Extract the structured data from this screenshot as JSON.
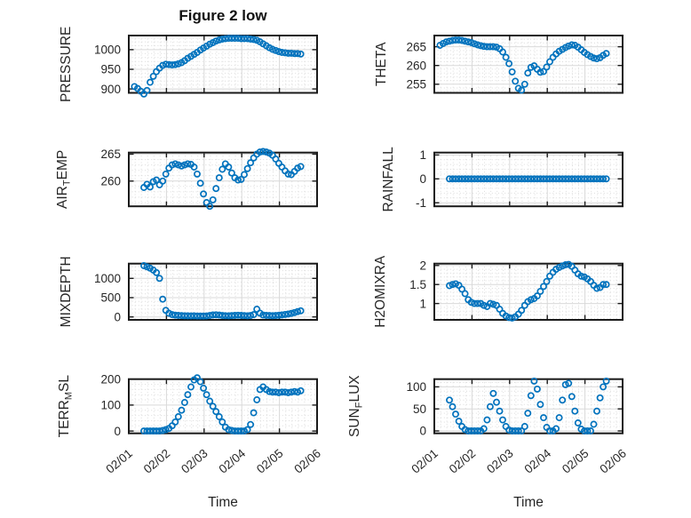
{
  "figure": {
    "title": "Figure 2 low"
  },
  "chart_data": {
    "type": "scatter",
    "title": "Figure 2 low",
    "xlabel": "Time",
    "xlim_days": [
      0,
      5
    ],
    "xtick_labels": [
      "02/01",
      "02/02",
      "02/03",
      "02/04",
      "02/05",
      "02/06"
    ],
    "x_minor_per_day": 6,
    "grid": {
      "major": true,
      "minor": true
    },
    "marker": {
      "shape": "circle-open",
      "color": "#0072BD"
    },
    "axis_color": "#1a1a1a",
    "major_grid_color": "#d9d9d9",
    "minor_grid_color": "#dcdcdc",
    "text_color": "#262626",
    "x_days": [
      0.15,
      0.233,
      0.317,
      0.4,
      0.483,
      0.567,
      0.65,
      0.733,
      0.817,
      0.9,
      0.983,
      1.067,
      1.15,
      1.233,
      1.317,
      1.4,
      1.483,
      1.567,
      1.65,
      1.733,
      1.817,
      1.9,
      1.983,
      2.067,
      2.15,
      2.233,
      2.317,
      2.4,
      2.483,
      2.567,
      2.65,
      2.733,
      2.817,
      2.9,
      2.983,
      3.067,
      3.15,
      3.233,
      3.317,
      3.4,
      3.483,
      3.567,
      3.65,
      3.733,
      3.817,
      3.9,
      3.983,
      4.067,
      4.15,
      4.233,
      4.317,
      4.4,
      4.483,
      4.567
    ],
    "subplots": [
      {
        "name": "PRESSURE",
        "ylabel": [
          {
            "text": "PRESSURE"
          }
        ],
        "yticks": [
          900,
          950,
          1000
        ],
        "ylim": [
          890,
          1036
        ],
        "y_minor_step": 10,
        "values": [
          906,
          901,
          894,
          887,
          896,
          917,
          932,
          944,
          953,
          960,
          963,
          962,
          961,
          962,
          964,
          967,
          972,
          978,
          983,
          988,
          993,
          999,
          1004,
          1009,
          1014,
          1018,
          1022,
          1025,
          1027,
          1028,
          1029,
          1029,
          1029,
          1029,
          1028,
          1028,
          1028,
          1027,
          1026,
          1024,
          1020,
          1015,
          1010,
          1005,
          1001,
          998,
          995,
          993,
          992,
          991,
          991,
          990,
          990,
          989
        ]
      },
      {
        "name": "THETA",
        "ylabel": [
          {
            "text": "THETA"
          }
        ],
        "yticks": [
          255,
          260,
          265
        ],
        "ylim": [
          252.7,
          268
        ],
        "y_minor_step": 1,
        "values": [
          265.4,
          265.9,
          266.3,
          266.5,
          266.7,
          266.8,
          266.8,
          266.7,
          266.5,
          266.3,
          266.1,
          265.8,
          265.5,
          265.3,
          265.1,
          265.0,
          265.0,
          265.0,
          264.9,
          264.5,
          263.6,
          262.2,
          260.5,
          258.3,
          255.8,
          253.9,
          253.4,
          255.0,
          258.0,
          259.5,
          259.9,
          259.0,
          258.2,
          258.4,
          259.6,
          261.0,
          262.2,
          263.1,
          263.8,
          264.3,
          264.8,
          265.2,
          265.5,
          265.4,
          264.9,
          264.2,
          263.5,
          262.9,
          262.4,
          262.0,
          261.8,
          262.1,
          262.7,
          263.2
        ]
      },
      {
        "name": "AIR_TEMP",
        "ylabel": [
          {
            "text": "AIR"
          },
          {
            "text": "T",
            "sub": true
          },
          {
            "text": "EMP"
          }
        ],
        "yticks": [
          260,
          265
        ],
        "ylim": [
          255.3,
          265.3
        ],
        "y_minor_step": 1,
        "values": [
          null,
          null,
          null,
          258.8,
          259.4,
          258.9,
          259.9,
          260.2,
          259.3,
          260.0,
          261.3,
          262.4,
          263.0,
          263.2,
          263.0,
          262.8,
          263.0,
          263.2,
          263.1,
          262.6,
          261.3,
          259.6,
          257.6,
          256.0,
          255.3,
          256.5,
          258.6,
          260.6,
          262.2,
          263.2,
          262.6,
          261.5,
          260.6,
          260.2,
          260.3,
          261.2,
          262.3,
          263.4,
          264.3,
          265.0,
          265.4,
          265.5,
          265.4,
          265.2,
          264.8,
          264.1,
          263.3,
          262.6,
          261.9,
          261.3,
          261.2,
          261.8,
          262.4,
          262.7
        ]
      },
      {
        "name": "RAINFALL",
        "ylabel": [
          {
            "text": "RAINFALL"
          }
        ],
        "yticks": [
          -1,
          0,
          1
        ],
        "ylim": [
          -1.15,
          1.1
        ],
        "y_minor_step": 0.2,
        "values": [
          null,
          null,
          null,
          0,
          0,
          0,
          0,
          0,
          0,
          0,
          0,
          0,
          0,
          0,
          0,
          0,
          0,
          0,
          0,
          0,
          0,
          0,
          0,
          0,
          0,
          0,
          0,
          0,
          0,
          0,
          0,
          0,
          0,
          0,
          0,
          0,
          0,
          0,
          0,
          0,
          0,
          0,
          0,
          0,
          0,
          0,
          0,
          0,
          0,
          0,
          0,
          0,
          0,
          0
        ]
      },
      {
        "name": "MIXDEPTH",
        "ylabel": [
          {
            "text": "MIXDEPTH"
          }
        ],
        "yticks": [
          0,
          500,
          1000
        ],
        "ylim": [
          -76,
          1382
        ],
        "y_minor_step": 100,
        "values": [
          null,
          null,
          null,
          1330,
          1300,
          1265,
          1215,
          1150,
          1000,
          460,
          170,
          95,
          60,
          45,
          40,
          35,
          30,
          28,
          26,
          28,
          24,
          22,
          22,
          26,
          38,
          50,
          55,
          48,
          38,
          32,
          30,
          34,
          40,
          44,
          40,
          34,
          30,
          36,
          60,
          200,
          100,
          48,
          40,
          36,
          32,
          36,
          44,
          54,
          64,
          76,
          92,
          112,
          138,
          160
        ]
      },
      {
        "name": "H2OMIXRA",
        "ylabel": [
          {
            "text": "H2OMIXRA"
          }
        ],
        "yticks": [
          1,
          1.5,
          2
        ],
        "ylim": [
          0.57,
          2.05
        ],
        "y_minor_step": 0.1,
        "values": [
          null,
          null,
          null,
          1.47,
          1.5,
          1.52,
          1.48,
          1.38,
          1.26,
          1.1,
          1.03,
          1.0,
          1.0,
          1.0,
          0.95,
          0.92,
          1.0,
          0.98,
          0.95,
          0.85,
          0.74,
          0.67,
          0.63,
          0.62,
          0.65,
          0.72,
          0.82,
          0.95,
          1.05,
          1.1,
          1.13,
          1.2,
          1.32,
          1.45,
          1.58,
          1.72,
          1.82,
          1.9,
          1.95,
          1.99,
          2.02,
          2.03,
          1.98,
          1.88,
          1.78,
          1.72,
          1.7,
          1.65,
          1.58,
          1.48,
          1.4,
          1.42,
          1.5,
          1.5
        ]
      },
      {
        "name": "TERR_MSL",
        "ylabel": [
          {
            "text": "TERR"
          },
          {
            "text": "M",
            "sub": true
          },
          {
            "text": "SL"
          }
        ],
        "yticks": [
          0,
          100,
          200
        ],
        "ylim": [
          -9,
          200
        ],
        "y_minor_step": 20,
        "values": [
          null,
          null,
          null,
          0,
          0,
          0,
          0,
          0,
          0,
          2,
          5,
          10,
          20,
          35,
          55,
          80,
          110,
          140,
          170,
          197,
          205,
          190,
          165,
          140,
          115,
          95,
          75,
          55,
          35,
          15,
          5,
          2,
          0,
          0,
          0,
          0,
          5,
          25,
          70,
          120,
          160,
          170,
          160,
          152,
          150,
          150,
          148,
          150,
          150,
          148,
          150,
          152,
          150,
          155
        ]
      },
      {
        "name": "SUN_FLUX",
        "ylabel": [
          {
            "text": "SUN"
          },
          {
            "text": "F",
            "sub": true
          },
          {
            "text": "LUX"
          }
        ],
        "yticks": [
          0,
          50,
          100
        ],
        "ylim": [
          -5.5,
          117.5
        ],
        "y_minor_step": 10,
        "values": [
          null,
          null,
          null,
          70,
          55,
          38,
          22,
          10,
          3,
          0,
          0,
          0,
          0,
          0,
          5,
          25,
          55,
          85,
          65,
          45,
          25,
          10,
          2,
          0,
          0,
          0,
          0,
          10,
          40,
          80,
          113,
          95,
          60,
          30,
          8,
          0,
          0,
          5,
          30,
          70,
          105,
          108,
          78,
          45,
          18,
          4,
          0,
          0,
          0,
          15,
          45,
          75,
          100,
          113
        ]
      }
    ]
  }
}
